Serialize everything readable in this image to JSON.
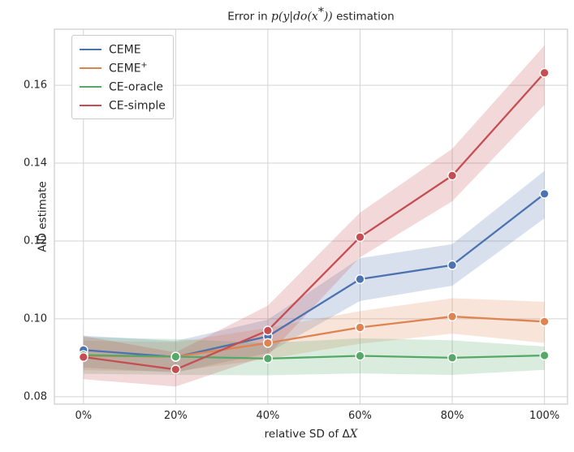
{
  "chart_data": {
    "type": "line",
    "title": {
      "full": "Error in p(y|do(x*)) estimation",
      "prefix": "Error in ",
      "math_open": "p(y|do(x",
      "star": "*",
      "math_close": "))",
      "suffix": " estimation"
    },
    "xlabel": {
      "full": "relative SD of ΔX",
      "prefix": "relative SD of Δ",
      "math": "X"
    },
    "ylabel": "AID estimate",
    "categories": [
      "0%",
      "20%",
      "40%",
      "60%",
      "80%",
      "100%"
    ],
    "x_percent": [
      0,
      20,
      40,
      60,
      80,
      100
    ],
    "ytick_labels": [
      "0.08",
      "0.10",
      "0.12",
      "0.14",
      "0.16"
    ],
    "ytick_values": [
      0.08,
      0.1,
      0.12,
      0.14,
      0.16
    ],
    "ylim": [
      0.0781,
      0.1744
    ],
    "xlim_pct": [
      -6.3,
      105.0
    ],
    "grid": true,
    "legend_position": "upper-left",
    "series": [
      {
        "name": "CEME",
        "name_sup": "",
        "color": "#4C72B0",
        "values": [
          0.092,
          0.0902,
          0.0955,
          0.1102,
          0.1138,
          0.1321
        ],
        "ci_lower": [
          0.0875,
          0.0862,
          0.0912,
          0.1046,
          0.1085,
          0.1258
        ],
        "ci_upper": [
          0.0957,
          0.0943,
          0.0998,
          0.1156,
          0.1192,
          0.138
        ]
      },
      {
        "name": "CEME",
        "name_sup": "+",
        "color": "#DD8452",
        "values": [
          0.0905,
          0.0903,
          0.0938,
          0.0978,
          0.1006,
          0.0993
        ],
        "ci_lower": [
          0.0868,
          0.0865,
          0.0897,
          0.0936,
          0.0962,
          0.0938
        ],
        "ci_upper": [
          0.0944,
          0.094,
          0.0977,
          0.102,
          0.1053,
          0.1044
        ]
      },
      {
        "name": "CE-oracle",
        "name_sup": "",
        "color": "#55A868",
        "values": [
          0.0907,
          0.0903,
          0.0898,
          0.0905,
          0.09,
          0.0906
        ],
        "ci_lower": [
          0.0859,
          0.0856,
          0.0855,
          0.086,
          0.0856,
          0.0869
        ],
        "ci_upper": [
          0.0953,
          0.0948,
          0.0938,
          0.095,
          0.0945,
          0.0929
        ]
      },
      {
        "name": "CE-simple",
        "name_sup": "",
        "color": "#C44E52",
        "values": [
          0.0902,
          0.087,
          0.097,
          0.121,
          0.1368,
          0.1632
        ],
        "ci_lower": [
          0.0845,
          0.0826,
          0.0906,
          0.1158,
          0.1302,
          0.155
        ],
        "ci_upper": [
          0.0956,
          0.0914,
          0.1034,
          0.1273,
          0.1437,
          0.1702
        ]
      }
    ],
    "style": {
      "grid_color": "#d3d3d3",
      "frame_color": "#cccccc",
      "band_opacity": 0.22,
      "text_color": "#262626",
      "background": "#ffffff"
    }
  }
}
